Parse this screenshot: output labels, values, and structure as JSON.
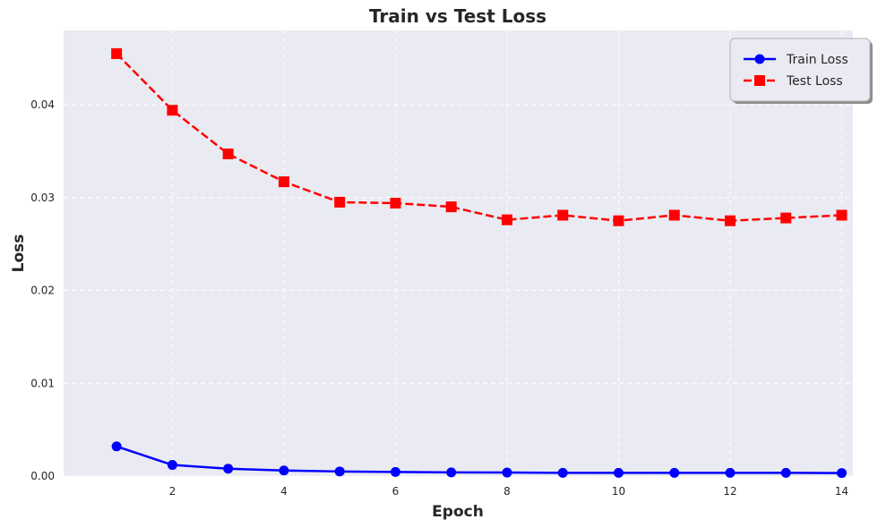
{
  "chart_data": {
    "type": "line",
    "title": "Train vs Test Loss",
    "xlabel": "Epoch",
    "ylabel": "Loss",
    "x": [
      1,
      2,
      3,
      4,
      5,
      6,
      7,
      8,
      9,
      10,
      11,
      12,
      13,
      14
    ],
    "xlim": [
      0.05,
      14.2
    ],
    "ylim": [
      0,
      0.048
    ],
    "xticks": [
      2,
      4,
      6,
      8,
      10,
      12,
      14
    ],
    "xtick_labels": [
      "2",
      "4",
      "6",
      "8",
      "10",
      "12",
      "14"
    ],
    "yticks": [
      0,
      0.01,
      0.02,
      0.03,
      0.04
    ],
    "ytick_labels": [
      "0.00",
      "0.01",
      "0.02",
      "0.03",
      "0.04"
    ],
    "grid": true,
    "legend_position": "top-right",
    "series": [
      {
        "name": "Train Loss",
        "color": "#0000ff",
        "marker": "circle",
        "linestyle": "solid",
        "values": [
          0.0032,
          0.0012,
          0.0008,
          0.0006,
          0.0005,
          0.00045,
          0.0004,
          0.00038,
          0.00035,
          0.00035,
          0.00035,
          0.00035,
          0.00035,
          0.00033
        ]
      },
      {
        "name": "Test Loss",
        "color": "#ff0000",
        "marker": "square",
        "linestyle": "dashed",
        "values": [
          0.0455,
          0.0394,
          0.0347,
          0.0317,
          0.0295,
          0.0294,
          0.029,
          0.0276,
          0.0281,
          0.0275,
          0.0281,
          0.0275,
          0.0278,
          0.0281
        ]
      }
    ]
  },
  "colors": {
    "plot_background": "#eaeaf2",
    "grid": "#ffffff",
    "text": "#262626"
  }
}
